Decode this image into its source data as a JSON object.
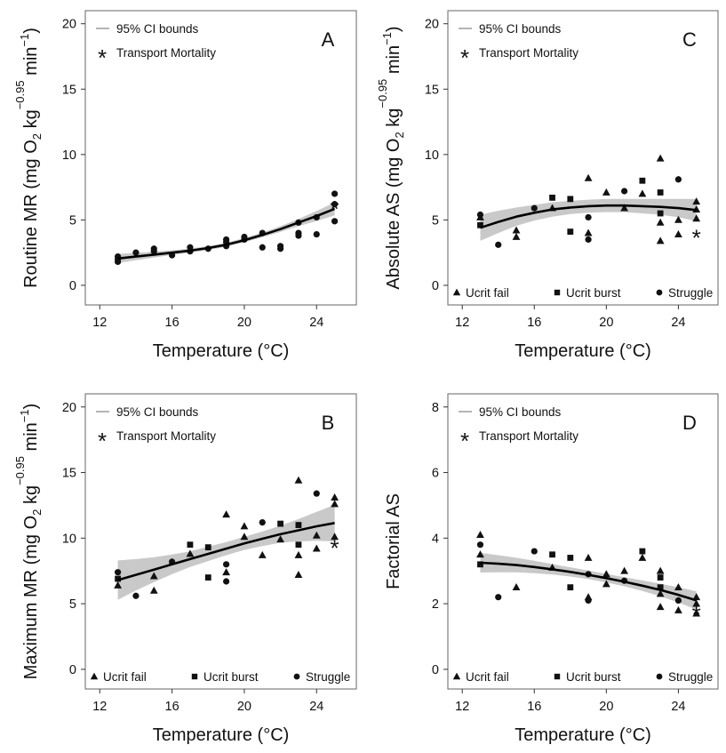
{
  "chart_data": [
    {
      "panel": "A",
      "type": "scatter",
      "xlabel": "Temperature (°C)",
      "ylabel_parts": [
        "Routine MR (mg O",
        "2",
        " kg",
        "−0.95",
        " min",
        "−1",
        ")"
      ],
      "xlim": [
        11.2,
        26.2
      ],
      "ylim": [
        -1.5,
        21
      ],
      "xticks": [
        12,
        16,
        20,
        24
      ],
      "yticks": [
        0,
        5,
        10,
        15,
        20
      ],
      "grid": false,
      "legend": {
        "position": "top-left",
        "ci_label": "95% CI bounds",
        "mortality_label": "Transport Mortality"
      },
      "fit": [
        [
          13,
          2.05
        ],
        [
          14,
          2.2
        ],
        [
          15,
          2.35
        ],
        [
          16,
          2.5
        ],
        [
          17,
          2.65
        ],
        [
          18,
          2.85
        ],
        [
          19,
          3.1
        ],
        [
          20,
          3.45
        ],
        [
          21,
          3.85
        ],
        [
          22,
          4.3
        ],
        [
          23,
          4.8
        ],
        [
          24,
          5.3
        ],
        [
          25,
          5.85
        ]
      ],
      "ci_halfwidth": [
        0.35,
        0.28,
        0.22,
        0.18,
        0.16,
        0.15,
        0.15,
        0.16,
        0.18,
        0.22,
        0.28,
        0.38,
        0.5
      ],
      "points": [
        {
          "x": 13,
          "y": 2.0,
          "m": "circle"
        },
        {
          "x": 13,
          "y": 1.8,
          "m": "circle"
        },
        {
          "x": 13,
          "y": 2.2,
          "m": "circle"
        },
        {
          "x": 14,
          "y": 2.5,
          "m": "circle"
        },
        {
          "x": 15,
          "y": 2.8,
          "m": "circle"
        },
        {
          "x": 15,
          "y": 2.6,
          "m": "circle"
        },
        {
          "x": 16,
          "y": 2.3,
          "m": "circle"
        },
        {
          "x": 17,
          "y": 2.9,
          "m": "circle"
        },
        {
          "x": 17,
          "y": 2.6,
          "m": "circle"
        },
        {
          "x": 18,
          "y": 2.8,
          "m": "circle"
        },
        {
          "x": 19,
          "y": 3.5,
          "m": "circle"
        },
        {
          "x": 19,
          "y": 3.0,
          "m": "circle"
        },
        {
          "x": 19,
          "y": 3.3,
          "m": "circle"
        },
        {
          "x": 20,
          "y": 3.7,
          "m": "circle"
        },
        {
          "x": 20,
          "y": 3.5,
          "m": "circle"
        },
        {
          "x": 21,
          "y": 4.0,
          "m": "circle"
        },
        {
          "x": 21,
          "y": 2.9,
          "m": "circle"
        },
        {
          "x": 22,
          "y": 3.0,
          "m": "circle"
        },
        {
          "x": 22,
          "y": 2.8,
          "m": "circle"
        },
        {
          "x": 23,
          "y": 4.8,
          "m": "circle"
        },
        {
          "x": 23,
          "y": 4.0,
          "m": "circle"
        },
        {
          "x": 23,
          "y": 3.8,
          "m": "circle"
        },
        {
          "x": 24,
          "y": 5.2,
          "m": "circle"
        },
        {
          "x": 24,
          "y": 3.9,
          "m": "circle"
        },
        {
          "x": 25,
          "y": 7.0,
          "m": "circle"
        },
        {
          "x": 25,
          "y": 6.2,
          "m": "circle"
        },
        {
          "x": 25,
          "y": 4.9,
          "m": "circle"
        }
      ],
      "mortality": [
        {
          "x": 25,
          "y": 5.9
        }
      ]
    },
    {
      "panel": "C",
      "type": "scatter",
      "xlabel": "Temperature (°C)",
      "ylabel_parts": [
        "Absolute AS (mg O",
        "2",
        " kg",
        "−0.95",
        " min",
        "−1",
        ")"
      ],
      "xlim": [
        11.2,
        26.2
      ],
      "ylim": [
        -1.5,
        21
      ],
      "xticks": [
        12,
        16,
        20,
        24
      ],
      "yticks": [
        0,
        5,
        10,
        15,
        20
      ],
      "grid": false,
      "legend": {
        "position": "top-left",
        "ci_label": "95% CI bounds",
        "mortality_label": "Transport Mortality"
      },
      "marker_legend": [
        "Ucrit fail",
        "Ucrit burst",
        "Struggle"
      ],
      "fit": [
        [
          13,
          4.4
        ],
        [
          14,
          4.85
        ],
        [
          15,
          5.25
        ],
        [
          16,
          5.55
        ],
        [
          17,
          5.8
        ],
        [
          18,
          5.95
        ],
        [
          19,
          6.05
        ],
        [
          20,
          6.1
        ],
        [
          21,
          6.1
        ],
        [
          22,
          6.05
        ],
        [
          23,
          6.0
        ],
        [
          24,
          5.9
        ],
        [
          25,
          5.75
        ]
      ],
      "ci_halfwidth": [
        1.0,
        0.85,
        0.7,
        0.6,
        0.55,
        0.5,
        0.5,
        0.5,
        0.5,
        0.55,
        0.6,
        0.7,
        0.85
      ],
      "points": [
        {
          "x": 13,
          "y": 5.2,
          "m": "triangle"
        },
        {
          "x": 13,
          "y": 4.6,
          "m": "square"
        },
        {
          "x": 13,
          "y": 5.4,
          "m": "circle"
        },
        {
          "x": 14,
          "y": 3.1,
          "m": "circle"
        },
        {
          "x": 15,
          "y": 4.2,
          "m": "triangle"
        },
        {
          "x": 15,
          "y": 3.7,
          "m": "triangle"
        },
        {
          "x": 16,
          "y": 5.9,
          "m": "circle"
        },
        {
          "x": 17,
          "y": 6.7,
          "m": "square"
        },
        {
          "x": 17,
          "y": 5.9,
          "m": "triangle"
        },
        {
          "x": 18,
          "y": 6.6,
          "m": "square"
        },
        {
          "x": 18,
          "y": 4.1,
          "m": "square"
        },
        {
          "x": 19,
          "y": 8.2,
          "m": "triangle"
        },
        {
          "x": 19,
          "y": 5.2,
          "m": "circle"
        },
        {
          "x": 19,
          "y": 4.0,
          "m": "triangle"
        },
        {
          "x": 19,
          "y": 3.5,
          "m": "circle"
        },
        {
          "x": 20,
          "y": 7.1,
          "m": "triangle"
        },
        {
          "x": 21,
          "y": 7.2,
          "m": "circle"
        },
        {
          "x": 21,
          "y": 5.9,
          "m": "triangle"
        },
        {
          "x": 22,
          "y": 8.0,
          "m": "square"
        },
        {
          "x": 22,
          "y": 7.0,
          "m": "triangle"
        },
        {
          "x": 23,
          "y": 9.7,
          "m": "triangle"
        },
        {
          "x": 23,
          "y": 7.1,
          "m": "square"
        },
        {
          "x": 23,
          "y": 5.5,
          "m": "square"
        },
        {
          "x": 23,
          "y": 4.8,
          "m": "triangle"
        },
        {
          "x": 23,
          "y": 3.4,
          "m": "triangle"
        },
        {
          "x": 24,
          "y": 8.1,
          "m": "circle"
        },
        {
          "x": 24,
          "y": 5.0,
          "m": "triangle"
        },
        {
          "x": 24,
          "y": 3.9,
          "m": "triangle"
        },
        {
          "x": 25,
          "y": 6.4,
          "m": "triangle"
        },
        {
          "x": 25,
          "y": 5.8,
          "m": "triangle"
        },
        {
          "x": 25,
          "y": 5.1,
          "m": "triangle"
        }
      ],
      "mortality": [
        {
          "x": 25,
          "y": 3.7
        }
      ]
    },
    {
      "panel": "B",
      "type": "scatter",
      "xlabel": "Temperature (°C)",
      "ylabel_parts": [
        "Maximum MR (mg O",
        "2",
        " kg",
        "−0.95",
        " min",
        "−1",
        ")"
      ],
      "xlim": [
        11.2,
        26.2
      ],
      "ylim": [
        -1.5,
        21
      ],
      "xticks": [
        12,
        16,
        20,
        24
      ],
      "yticks": [
        0,
        5,
        10,
        15,
        20
      ],
      "grid": false,
      "legend": {
        "position": "top-left",
        "ci_label": "95% CI bounds",
        "mortality_label": "Transport Mortality"
      },
      "marker_legend": [
        "Ucrit fail",
        "Ucrit burst",
        "Struggle"
      ],
      "fit": [
        [
          13,
          6.8
        ],
        [
          14,
          7.2
        ],
        [
          15,
          7.6
        ],
        [
          16,
          8.0
        ],
        [
          17,
          8.4
        ],
        [
          18,
          8.8
        ],
        [
          19,
          9.2
        ],
        [
          20,
          9.6
        ],
        [
          21,
          9.95
        ],
        [
          22,
          10.3
        ],
        [
          23,
          10.6
        ],
        [
          24,
          10.9
        ],
        [
          25,
          11.15
        ]
      ],
      "ci_halfwidth": [
        1.5,
        1.2,
        0.95,
        0.75,
        0.6,
        0.55,
        0.5,
        0.5,
        0.55,
        0.65,
        0.85,
        1.1,
        1.4
      ],
      "points": [
        {
          "x": 13,
          "y": 7.4,
          "m": "circle"
        },
        {
          "x": 13,
          "y": 6.9,
          "m": "square"
        },
        {
          "x": 13,
          "y": 6.4,
          "m": "triangle"
        },
        {
          "x": 14,
          "y": 5.6,
          "m": "circle"
        },
        {
          "x": 15,
          "y": 7.1,
          "m": "triangle"
        },
        {
          "x": 15,
          "y": 6.0,
          "m": "triangle"
        },
        {
          "x": 16,
          "y": 8.2,
          "m": "circle"
        },
        {
          "x": 17,
          "y": 9.5,
          "m": "square"
        },
        {
          "x": 17,
          "y": 8.8,
          "m": "triangle"
        },
        {
          "x": 18,
          "y": 9.3,
          "m": "square"
        },
        {
          "x": 18,
          "y": 7.0,
          "m": "square"
        },
        {
          "x": 19,
          "y": 11.8,
          "m": "triangle"
        },
        {
          "x": 19,
          "y": 8.0,
          "m": "circle"
        },
        {
          "x": 19,
          "y": 7.4,
          "m": "triangle"
        },
        {
          "x": 19,
          "y": 6.7,
          "m": "circle"
        },
        {
          "x": 20,
          "y": 10.9,
          "m": "triangle"
        },
        {
          "x": 20,
          "y": 10.1,
          "m": "triangle"
        },
        {
          "x": 21,
          "y": 11.2,
          "m": "circle"
        },
        {
          "x": 21,
          "y": 8.7,
          "m": "triangle"
        },
        {
          "x": 22,
          "y": 11.1,
          "m": "square"
        },
        {
          "x": 22,
          "y": 9.9,
          "m": "triangle"
        },
        {
          "x": 23,
          "y": 14.4,
          "m": "triangle"
        },
        {
          "x": 23,
          "y": 11.0,
          "m": "square"
        },
        {
          "x": 23,
          "y": 9.5,
          "m": "square"
        },
        {
          "x": 23,
          "y": 8.7,
          "m": "triangle"
        },
        {
          "x": 23,
          "y": 7.2,
          "m": "triangle"
        },
        {
          "x": 24,
          "y": 13.4,
          "m": "circle"
        },
        {
          "x": 24,
          "y": 10.2,
          "m": "triangle"
        },
        {
          "x": 24,
          "y": 9.2,
          "m": "triangle"
        },
        {
          "x": 25,
          "y": 13.1,
          "m": "triangle"
        },
        {
          "x": 25,
          "y": 12.6,
          "m": "triangle"
        },
        {
          "x": 25,
          "y": 10.1,
          "m": "triangle"
        }
      ],
      "mortality": [
        {
          "x": 25,
          "y": 9.3
        }
      ]
    },
    {
      "panel": "D",
      "type": "scatter",
      "xlabel": "Temperature (°C)",
      "ylabel_parts": [
        "Factorial AS"
      ],
      "xlim": [
        11.2,
        26.2
      ],
      "ylim": [
        -0.6,
        8.4
      ],
      "xticks": [
        12,
        16,
        20,
        24
      ],
      "yticks": [
        0,
        2,
        4,
        6,
        8
      ],
      "grid": false,
      "legend": {
        "position": "top-left",
        "ci_label": "95% CI bounds",
        "mortality_label": "Transport Mortality"
      },
      "marker_legend": [
        "Ucrit fail",
        "Ucrit burst",
        "Struggle"
      ],
      "fit": [
        [
          13,
          3.25
        ],
        [
          14,
          3.22
        ],
        [
          15,
          3.18
        ],
        [
          16,
          3.12
        ],
        [
          17,
          3.05
        ],
        [
          18,
          2.97
        ],
        [
          19,
          2.88
        ],
        [
          20,
          2.78
        ],
        [
          21,
          2.67
        ],
        [
          22,
          2.55
        ],
        [
          23,
          2.42
        ],
        [
          24,
          2.27
        ],
        [
          25,
          2.1
        ]
      ],
      "ci_halfwidth": [
        0.3,
        0.26,
        0.22,
        0.19,
        0.16,
        0.14,
        0.13,
        0.13,
        0.14,
        0.16,
        0.19,
        0.23,
        0.28
      ],
      "points": [
        {
          "x": 13,
          "y": 4.1,
          "m": "triangle"
        },
        {
          "x": 13,
          "y": 3.8,
          "m": "circle"
        },
        {
          "x": 13,
          "y": 3.5,
          "m": "triangle"
        },
        {
          "x": 13,
          "y": 3.2,
          "m": "square"
        },
        {
          "x": 14,
          "y": 2.2,
          "m": "circle"
        },
        {
          "x": 15,
          "y": 2.5,
          "m": "triangle"
        },
        {
          "x": 16,
          "y": 3.6,
          "m": "circle"
        },
        {
          "x": 17,
          "y": 3.5,
          "m": "square"
        },
        {
          "x": 17,
          "y": 3.1,
          "m": "triangle"
        },
        {
          "x": 18,
          "y": 3.4,
          "m": "square"
        },
        {
          "x": 18,
          "y": 2.5,
          "m": "square"
        },
        {
          "x": 19,
          "y": 3.4,
          "m": "triangle"
        },
        {
          "x": 19,
          "y": 2.9,
          "m": "circle"
        },
        {
          "x": 19,
          "y": 2.2,
          "m": "triangle"
        },
        {
          "x": 19,
          "y": 2.1,
          "m": "circle"
        },
        {
          "x": 20,
          "y": 2.9,
          "m": "triangle"
        },
        {
          "x": 20,
          "y": 2.6,
          "m": "triangle"
        },
        {
          "x": 21,
          "y": 3.0,
          "m": "triangle"
        },
        {
          "x": 21,
          "y": 2.7,
          "m": "circle"
        },
        {
          "x": 22,
          "y": 3.6,
          "m": "square"
        },
        {
          "x": 22,
          "y": 3.4,
          "m": "triangle"
        },
        {
          "x": 23,
          "y": 3.0,
          "m": "triangle"
        },
        {
          "x": 23,
          "y": 2.8,
          "m": "square"
        },
        {
          "x": 23,
          "y": 2.5,
          "m": "square"
        },
        {
          "x": 23,
          "y": 2.3,
          "m": "triangle"
        },
        {
          "x": 23,
          "y": 1.9,
          "m": "triangle"
        },
        {
          "x": 24,
          "y": 2.5,
          "m": "triangle"
        },
        {
          "x": 24,
          "y": 2.1,
          "m": "circle"
        },
        {
          "x": 24,
          "y": 1.8,
          "m": "triangle"
        },
        {
          "x": 25,
          "y": 2.2,
          "m": "triangle"
        },
        {
          "x": 25,
          "y": 2.0,
          "m": "triangle"
        },
        {
          "x": 25,
          "y": 1.7,
          "m": "triangle"
        }
      ],
      "mortality": [
        {
          "x": 25,
          "y": 1.7
        }
      ]
    }
  ],
  "colors": {
    "ci_band": "#c9c9c9",
    "fit_line": "#000000",
    "marker": "#111111",
    "frame": "#666666"
  }
}
